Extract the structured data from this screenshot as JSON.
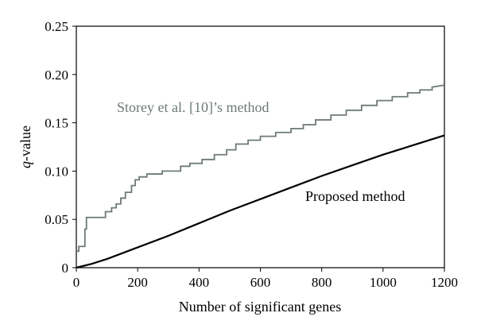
{
  "chart_data": {
    "type": "line",
    "xlabel": "Number of significant genes",
    "ylabel_prefix": "q",
    "ylabel_suffix": "-value",
    "xlim": [
      0,
      1200
    ],
    "ylim": [
      0,
      0.25
    ],
    "x_ticks": [
      0,
      200,
      400,
      600,
      800,
      1000,
      1200
    ],
    "x_tick_labels": [
      "0",
      "200",
      "400",
      "600",
      "800",
      "1000",
      "1200"
    ],
    "y_ticks": [
      0,
      0.05,
      0.1,
      0.15,
      0.2,
      0.25
    ],
    "y_tick_labels": [
      "0",
      "0.05",
      "0.10",
      "0.15",
      "0.20",
      "0.25"
    ],
    "grid": false,
    "legend": "none",
    "series": [
      {
        "name": "Storey et al. [10]’s method",
        "color": "#6e7b73",
        "step": true,
        "points": [
          [
            0,
            0.017
          ],
          [
            8,
            0.017
          ],
          [
            8,
            0.022
          ],
          [
            28,
            0.022
          ],
          [
            28,
            0.04
          ],
          [
            33,
            0.04
          ],
          [
            33,
            0.052
          ],
          [
            95,
            0.052
          ],
          [
            95,
            0.058
          ],
          [
            115,
            0.058
          ],
          [
            115,
            0.062
          ],
          [
            130,
            0.062
          ],
          [
            130,
            0.066
          ],
          [
            145,
            0.066
          ],
          [
            145,
            0.072
          ],
          [
            160,
            0.072
          ],
          [
            160,
            0.078
          ],
          [
            180,
            0.078
          ],
          [
            180,
            0.085
          ],
          [
            192,
            0.085
          ],
          [
            192,
            0.091
          ],
          [
            205,
            0.091
          ],
          [
            205,
            0.094
          ],
          [
            230,
            0.094
          ],
          [
            230,
            0.097
          ],
          [
            280,
            0.097
          ],
          [
            280,
            0.1
          ],
          [
            340,
            0.1
          ],
          [
            340,
            0.105
          ],
          [
            370,
            0.105
          ],
          [
            370,
            0.108
          ],
          [
            410,
            0.108
          ],
          [
            410,
            0.112
          ],
          [
            450,
            0.112
          ],
          [
            450,
            0.117
          ],
          [
            490,
            0.117
          ],
          [
            490,
            0.122
          ],
          [
            520,
            0.122
          ],
          [
            520,
            0.128
          ],
          [
            560,
            0.128
          ],
          [
            560,
            0.132
          ],
          [
            600,
            0.132
          ],
          [
            600,
            0.136
          ],
          [
            650,
            0.136
          ],
          [
            650,
            0.14
          ],
          [
            700,
            0.14
          ],
          [
            700,
            0.144
          ],
          [
            740,
            0.144
          ],
          [
            740,
            0.148
          ],
          [
            780,
            0.148
          ],
          [
            780,
            0.153
          ],
          [
            830,
            0.153
          ],
          [
            830,
            0.158
          ],
          [
            880,
            0.158
          ],
          [
            880,
            0.163
          ],
          [
            930,
            0.163
          ],
          [
            930,
            0.168
          ],
          [
            980,
            0.168
          ],
          [
            980,
            0.173
          ],
          [
            1030,
            0.173
          ],
          [
            1030,
            0.177
          ],
          [
            1080,
            0.177
          ],
          [
            1080,
            0.181
          ],
          [
            1120,
            0.181
          ],
          [
            1120,
            0.184
          ],
          [
            1160,
            0.184
          ],
          [
            1160,
            0.187
          ],
          [
            1200,
            0.189
          ]
        ]
      },
      {
        "name": "Proposed method",
        "color": "#000000",
        "step": false,
        "points": [
          [
            0,
            0.0
          ],
          [
            50,
            0.004
          ],
          [
            100,
            0.009
          ],
          [
            200,
            0.021
          ],
          [
            300,
            0.033
          ],
          [
            400,
            0.046
          ],
          [
            500,
            0.059
          ],
          [
            600,
            0.071
          ],
          [
            700,
            0.083
          ],
          [
            800,
            0.095
          ],
          [
            900,
            0.106
          ],
          [
            1000,
            0.117
          ],
          [
            1100,
            0.127
          ],
          [
            1200,
            0.137
          ]
        ]
      }
    ],
    "annotations": [
      {
        "text": "Storey et al. [10]’s method",
        "x": 0.72,
        "y": 0.58,
        "anchor": "start",
        "color": "#6e7b73"
      },
      {
        "text": "Proposed method",
        "x": 0.78,
        "y": 0.38,
        "anchor": "start",
        "color": "#000000"
      }
    ]
  }
}
